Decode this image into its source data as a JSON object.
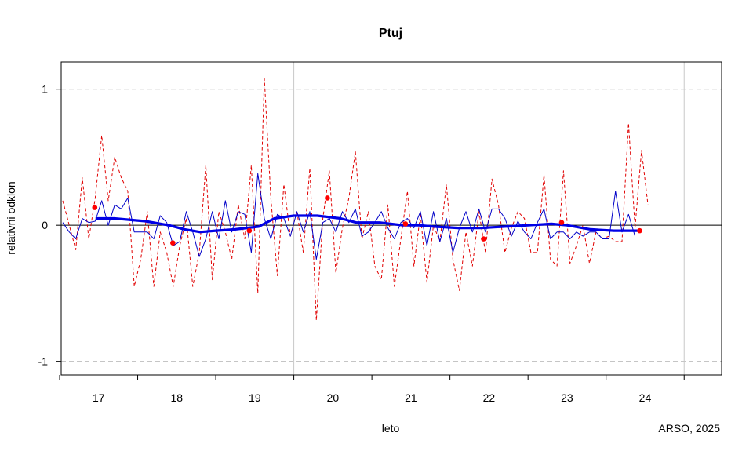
{
  "chart_data": {
    "type": "line",
    "title": "Ptuj",
    "xlabel": "leto",
    "ylabel": "relativni odklon",
    "credit": "ARSO, 2025",
    "ylim": [
      -1.1,
      1.2
    ],
    "xlim": [
      16.52,
      24.98
    ],
    "y_ticks": [
      -1,
      0,
      1
    ],
    "y_tick_labels": [
      "-1",
      "0",
      "1"
    ],
    "x_year_boundaries": [
      16.5,
      17.5,
      18.5,
      19.5,
      20.5,
      21.5,
      22.5,
      23.5,
      24.5
    ],
    "x_year_centers": [
      17,
      18,
      19,
      20,
      21,
      22,
      23,
      24
    ],
    "x_tick_labels": [
      "17",
      "18",
      "19",
      "20",
      "21",
      "22",
      "23",
      "24"
    ],
    "grid": "horizontal dashed at -1 and 1, vertical reference at 19.5 and 24.5",
    "series": [
      {
        "kind": "monthly",
        "color": "#e00000",
        "style": "dashed",
        "x_start": 16.54,
        "x_step": 0.0833,
        "values": [
          0.18,
          0.0,
          -0.18,
          0.35,
          -0.1,
          0.2,
          0.66,
          0.18,
          0.5,
          0.35,
          0.25,
          -0.45,
          -0.25,
          0.1,
          -0.45,
          -0.05,
          -0.2,
          -0.45,
          -0.15,
          0.05,
          -0.45,
          -0.2,
          0.44,
          -0.4,
          0.1,
          -0.05,
          -0.25,
          0.15,
          -0.1,
          0.44,
          -0.5,
          1.08,
          0.2,
          -0.37,
          0.3,
          -0.08,
          0.1,
          -0.2,
          0.42,
          -0.7,
          0.05,
          0.4,
          -0.35,
          -0.02,
          0.2,
          0.54,
          -0.1,
          0.1,
          -0.3,
          -0.4,
          0.15,
          -0.45,
          -0.1,
          0.25,
          -0.3,
          0.08,
          -0.42,
          0.0,
          -0.12,
          0.3,
          -0.25,
          -0.48,
          -0.05,
          -0.3,
          0.1,
          -0.2,
          0.34,
          0.15,
          -0.2,
          -0.02,
          0.1,
          0.05,
          -0.2,
          -0.2,
          0.37,
          -0.25,
          -0.3,
          0.4,
          -0.28,
          -0.15,
          0.0,
          -0.28,
          -0.05,
          -0.1,
          -0.08,
          -0.12,
          -0.12,
          0.75,
          -0.02,
          0.55,
          0.15
        ]
      },
      {
        "kind": "three-month",
        "color": "#0000c8",
        "style": "solid",
        "x_start": 16.54,
        "x_step": 0.0833,
        "values": [
          0.02,
          -0.05,
          -0.1,
          0.05,
          0.02,
          0.03,
          0.18,
          0.0,
          0.15,
          0.12,
          0.2,
          -0.05,
          -0.05,
          -0.05,
          -0.1,
          0.07,
          0.02,
          -0.15,
          -0.12,
          0.1,
          -0.05,
          -0.23,
          -0.1,
          0.1,
          -0.1,
          0.18,
          -0.05,
          0.1,
          0.08,
          -0.2,
          0.38,
          0.05,
          -0.1,
          0.08,
          0.05,
          -0.08,
          0.1,
          -0.05,
          0.1,
          -0.25,
          0.02,
          0.05,
          -0.05,
          0.1,
          0.02,
          0.12,
          -0.08,
          -0.05,
          0.02,
          0.1,
          -0.02,
          -0.1,
          0.02,
          0.05,
          -0.02,
          0.1,
          -0.15,
          0.1,
          -0.12,
          0.05,
          -0.2,
          -0.02,
          0.1,
          -0.05,
          0.12,
          -0.05,
          0.12,
          0.12,
          0.05,
          -0.08,
          0.03,
          -0.05,
          -0.1,
          0.02,
          0.12,
          -0.1,
          -0.05,
          -0.05,
          -0.1,
          -0.05,
          -0.08,
          -0.05,
          -0.05,
          -0.1,
          -0.1,
          0.25,
          -0.05,
          0.08,
          -0.08
        ]
      },
      {
        "kind": "annual-moving",
        "color": "#0000e6",
        "style": "thick",
        "points": [
          [
            16.96,
            0.05
          ],
          [
            17.2,
            0.05
          ],
          [
            17.6,
            0.03
          ],
          [
            17.9,
            0.0
          ],
          [
            18.1,
            -0.03
          ],
          [
            18.3,
            -0.05
          ],
          [
            18.5,
            -0.04
          ],
          [
            18.75,
            -0.03
          ],
          [
            19.05,
            -0.01
          ],
          [
            19.25,
            0.05
          ],
          [
            19.5,
            0.07
          ],
          [
            19.8,
            0.07
          ],
          [
            20.1,
            0.05
          ],
          [
            20.3,
            0.02
          ],
          [
            20.6,
            0.02
          ],
          [
            20.9,
            0.0
          ],
          [
            21.1,
            0.0
          ],
          [
            21.3,
            -0.01
          ],
          [
            21.6,
            -0.02
          ],
          [
            21.9,
            -0.02
          ],
          [
            22.2,
            -0.01
          ],
          [
            22.5,
            0.0
          ],
          [
            22.8,
            0.01
          ],
          [
            23.0,
            0.0
          ],
          [
            23.3,
            -0.03
          ],
          [
            23.6,
            -0.04
          ],
          [
            23.9,
            -0.04
          ]
        ]
      },
      {
        "kind": "annual",
        "color": "#ff0000",
        "style": "points",
        "points": [
          [
            16.95,
            0.13
          ],
          [
            17.95,
            -0.13
          ],
          [
            18.93,
            -0.04
          ],
          [
            19.93,
            0.2
          ],
          [
            20.93,
            0.01
          ],
          [
            21.93,
            -0.1
          ],
          [
            22.93,
            0.02
          ],
          [
            23.93,
            -0.04
          ]
        ]
      }
    ]
  }
}
